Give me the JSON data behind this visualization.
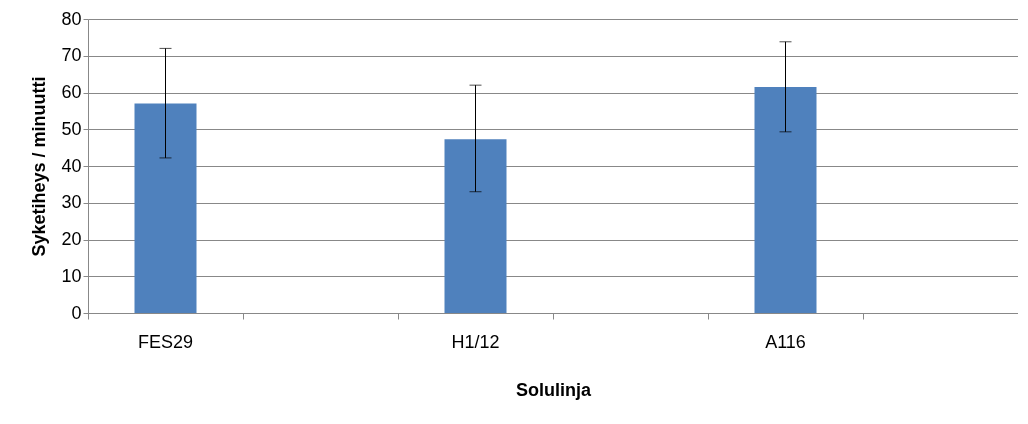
{
  "chart_data": {
    "type": "bar",
    "xlabel": "Solulinja",
    "ylabel": "Syketiheys / minuutti",
    "categories": [
      "FES29",
      null,
      "H1/12",
      null,
      "A116",
      null
    ],
    "values": [
      57,
      null,
      47.3,
      null,
      61.5,
      null
    ],
    "errors": [
      [
        42.2,
        72
      ],
      null,
      [
        33,
        62
      ],
      null,
      [
        49.3,
        73.8
      ],
      null
    ],
    "color": "#4f81bd",
    "ylim": [
      0,
      80
    ],
    "yticks": [
      0,
      10,
      20,
      30,
      40,
      50,
      60,
      70,
      80
    ],
    "grid": "y"
  }
}
